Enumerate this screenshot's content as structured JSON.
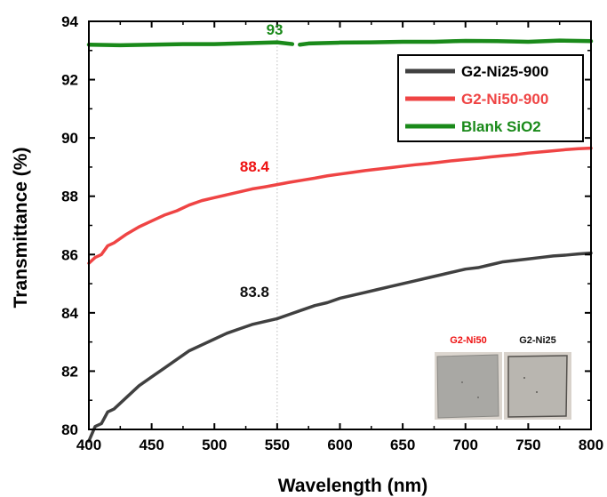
{
  "chart_data": {
    "type": "line",
    "xlabel": "Wavelength (nm)",
    "ylabel": "Transmittance (%)",
    "xlim": [
      400,
      800
    ],
    "ylim": [
      80,
      94
    ],
    "xticks": [
      400,
      450,
      500,
      550,
      600,
      650,
      700,
      750,
      800
    ],
    "yticks": [
      80,
      82,
      84,
      86,
      88,
      90,
      92,
      94
    ],
    "grid": false,
    "legend_position": "top-right",
    "reference_line_x": 550,
    "series": [
      {
        "name": "G2-Ni25-900",
        "color": "#404040",
        "x": [
          400,
          405,
          410,
          415,
          420,
          430,
          440,
          450,
          460,
          470,
          480,
          490,
          500,
          510,
          520,
          530,
          540,
          550,
          560,
          570,
          580,
          590,
          600,
          610,
          620,
          630,
          640,
          650,
          660,
          670,
          680,
          690,
          700,
          710,
          720,
          730,
          740,
          750,
          760,
          770,
          780,
          790,
          800
        ],
        "y": [
          79.6,
          80.1,
          80.2,
          80.6,
          80.7,
          81.1,
          81.5,
          81.8,
          82.1,
          82.4,
          82.7,
          82.9,
          83.1,
          83.3,
          83.45,
          83.6,
          83.7,
          83.8,
          83.95,
          84.1,
          84.25,
          84.35,
          84.5,
          84.6,
          84.7,
          84.8,
          84.9,
          85.0,
          85.1,
          85.2,
          85.3,
          85.4,
          85.5,
          85.55,
          85.65,
          85.75,
          85.8,
          85.85,
          85.9,
          85.95,
          85.98,
          86.02,
          86.05
        ]
      },
      {
        "name": "G2-Ni50-900",
        "color": "#ef4444",
        "x": [
          400,
          405,
          410,
          415,
          420,
          430,
          440,
          450,
          460,
          470,
          480,
          490,
          500,
          510,
          520,
          530,
          540,
          550,
          560,
          570,
          580,
          590,
          600,
          610,
          620,
          630,
          640,
          650,
          660,
          670,
          680,
          690,
          700,
          710,
          720,
          730,
          740,
          750,
          760,
          770,
          780,
          790,
          800
        ],
        "y": [
          85.7,
          85.9,
          86.0,
          86.3,
          86.4,
          86.7,
          86.95,
          87.15,
          87.35,
          87.5,
          87.7,
          87.85,
          87.95,
          88.05,
          88.15,
          88.25,
          88.32,
          88.4,
          88.48,
          88.55,
          88.62,
          88.7,
          88.76,
          88.82,
          88.88,
          88.93,
          88.98,
          89.03,
          89.08,
          89.12,
          89.17,
          89.22,
          89.26,
          89.3,
          89.35,
          89.39,
          89.43,
          89.48,
          89.52,
          89.56,
          89.6,
          89.63,
          89.65
        ]
      },
      {
        "name": "Blank SiO2",
        "color": "#1a8a1a",
        "x": [
          400,
          425,
          450,
          475,
          500,
          525,
          550,
          562,
          null,
          568,
          575,
          600,
          625,
          650,
          675,
          700,
          725,
          750,
          775,
          800
        ],
        "y": [
          93.2,
          93.18,
          93.2,
          93.22,
          93.22,
          93.25,
          93.28,
          93.22,
          null,
          93.2,
          93.24,
          93.27,
          93.28,
          93.3,
          93.3,
          93.33,
          93.32,
          93.3,
          93.34,
          93.32
        ]
      }
    ],
    "annotations": [
      {
        "text": "93",
        "x": 548,
        "y": 93.55,
        "color": "#1a8a1a"
      },
      {
        "text": "88.4",
        "x": 532,
        "y": 88.85,
        "color": "#ee1111"
      },
      {
        "text": "83.8",
        "x": 532,
        "y": 84.55,
        "color": "#111111"
      }
    ]
  },
  "inset": {
    "left_label": "G2-Ni50",
    "right_label": "G2-Ni25",
    "left_label_color": "#ee1111",
    "right_label_color": "#111111"
  }
}
